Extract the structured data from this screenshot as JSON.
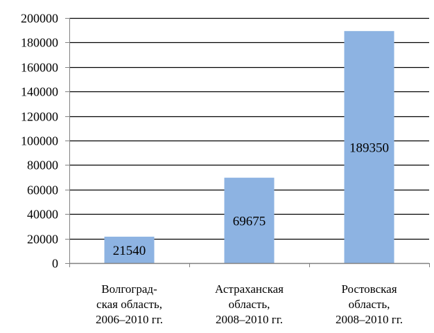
{
  "chart_data": {
    "type": "bar",
    "title": "",
    "xlabel": "",
    "ylabel": "",
    "categories": [
      [
        "Волгоград-",
        "ская область,",
        "2006–2010 гг."
      ],
      [
        "Астраханская",
        "область,",
        "2008–2010 гг."
      ],
      [
        "Ростовская",
        "область,",
        "2008–2010 гг."
      ]
    ],
    "values": [
      21540,
      69675,
      189350
    ],
    "data_labels": [
      "21540",
      "69675",
      "189350"
    ],
    "ylim": [
      0,
      200000
    ],
    "yticks": [
      0,
      20000,
      40000,
      60000,
      80000,
      100000,
      120000,
      140000,
      160000,
      180000,
      200000
    ],
    "ytick_labels": [
      "0",
      "20000",
      "40000",
      "60000",
      "80000",
      "100000",
      "120000",
      "140000",
      "160000",
      "180000",
      "200000"
    ],
    "grid": true,
    "legend": "none",
    "colors": {
      "bar": "#8DB3E2",
      "grid": "#000000",
      "axis": "#808080"
    }
  }
}
